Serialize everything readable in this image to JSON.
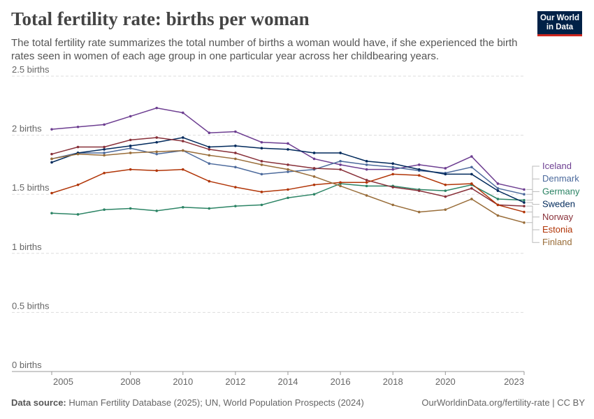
{
  "chart_data": {
    "type": "line",
    "title": "Total fertility rate: births per woman",
    "subtitle": "The total fertility rate summarizes the total number of births a woman would have, if she experienced the birth rates seen in women of each age group in one particular year across her childbearing years.",
    "logo": "Our World in Data",
    "source_label": "Data source:",
    "source": "Human Fertility Database (2025); UN, World Population Prospects (2024)",
    "url": "OurWorldinData.org/fertility-rate | CC BY",
    "x": [
      2005,
      2006,
      2007,
      2008,
      2009,
      2010,
      2011,
      2012,
      2013,
      2014,
      2015,
      2016,
      2017,
      2018,
      2019,
      2020,
      2021,
      2022,
      2023
    ],
    "xlim": [
      2005,
      2023
    ],
    "xticks": [
      2005,
      2008,
      2010,
      2012,
      2014,
      2016,
      2018,
      2020,
      2023
    ],
    "ylim": [
      0,
      2.5
    ],
    "yticks": [
      {
        "value": 0,
        "label": "0 births"
      },
      {
        "value": 0.5,
        "label": "0.5 births"
      },
      {
        "value": 1,
        "label": "1 births"
      },
      {
        "value": 1.5,
        "label": "1.5 births"
      },
      {
        "value": 2,
        "label": "2 births"
      },
      {
        "value": 2.5,
        "label": "2.5 births"
      }
    ],
    "grid": true,
    "series": [
      {
        "name": "Iceland",
        "color": "#6d3e91",
        "values": [
          2.05,
          2.07,
          2.09,
          2.16,
          2.23,
          2.19,
          2.02,
          2.03,
          1.94,
          1.93,
          1.8,
          1.75,
          1.71,
          1.71,
          1.75,
          1.72,
          1.82,
          1.59,
          1.54
        ]
      },
      {
        "name": "Denmark",
        "color": "#4c6a9c",
        "values": [
          1.8,
          1.85,
          1.85,
          1.89,
          1.84,
          1.87,
          1.76,
          1.73,
          1.67,
          1.69,
          1.71,
          1.78,
          1.75,
          1.73,
          1.7,
          1.68,
          1.73,
          1.55,
          1.5
        ]
      },
      {
        "name": "Germany",
        "color": "#2c8465",
        "values": [
          1.34,
          1.33,
          1.37,
          1.38,
          1.36,
          1.39,
          1.38,
          1.4,
          1.41,
          1.47,
          1.5,
          1.59,
          1.57,
          1.57,
          1.54,
          1.53,
          1.58,
          1.46,
          1.45
        ]
      },
      {
        "name": "Sweden",
        "color": "#00295b",
        "values": [
          1.77,
          1.85,
          1.88,
          1.91,
          1.94,
          1.98,
          1.9,
          1.91,
          1.89,
          1.88,
          1.85,
          1.85,
          1.78,
          1.76,
          1.71,
          1.67,
          1.67,
          1.53,
          1.43
        ]
      },
      {
        "name": "Norway",
        "color": "#883039",
        "values": [
          1.84,
          1.9,
          1.9,
          1.96,
          1.98,
          1.95,
          1.88,
          1.85,
          1.78,
          1.75,
          1.72,
          1.71,
          1.62,
          1.56,
          1.53,
          1.48,
          1.55,
          1.41,
          1.4
        ]
      },
      {
        "name": "Estonia",
        "color": "#b13507",
        "values": [
          1.51,
          1.58,
          1.68,
          1.71,
          1.7,
          1.71,
          1.61,
          1.56,
          1.52,
          1.54,
          1.58,
          1.6,
          1.6,
          1.67,
          1.66,
          1.58,
          1.59,
          1.41,
          1.35
        ]
      },
      {
        "name": "Finland",
        "color": "#996d39",
        "values": [
          1.8,
          1.84,
          1.83,
          1.85,
          1.86,
          1.87,
          1.83,
          1.8,
          1.75,
          1.71,
          1.65,
          1.57,
          1.49,
          1.41,
          1.35,
          1.37,
          1.46,
          1.32,
          1.26
        ]
      }
    ]
  }
}
